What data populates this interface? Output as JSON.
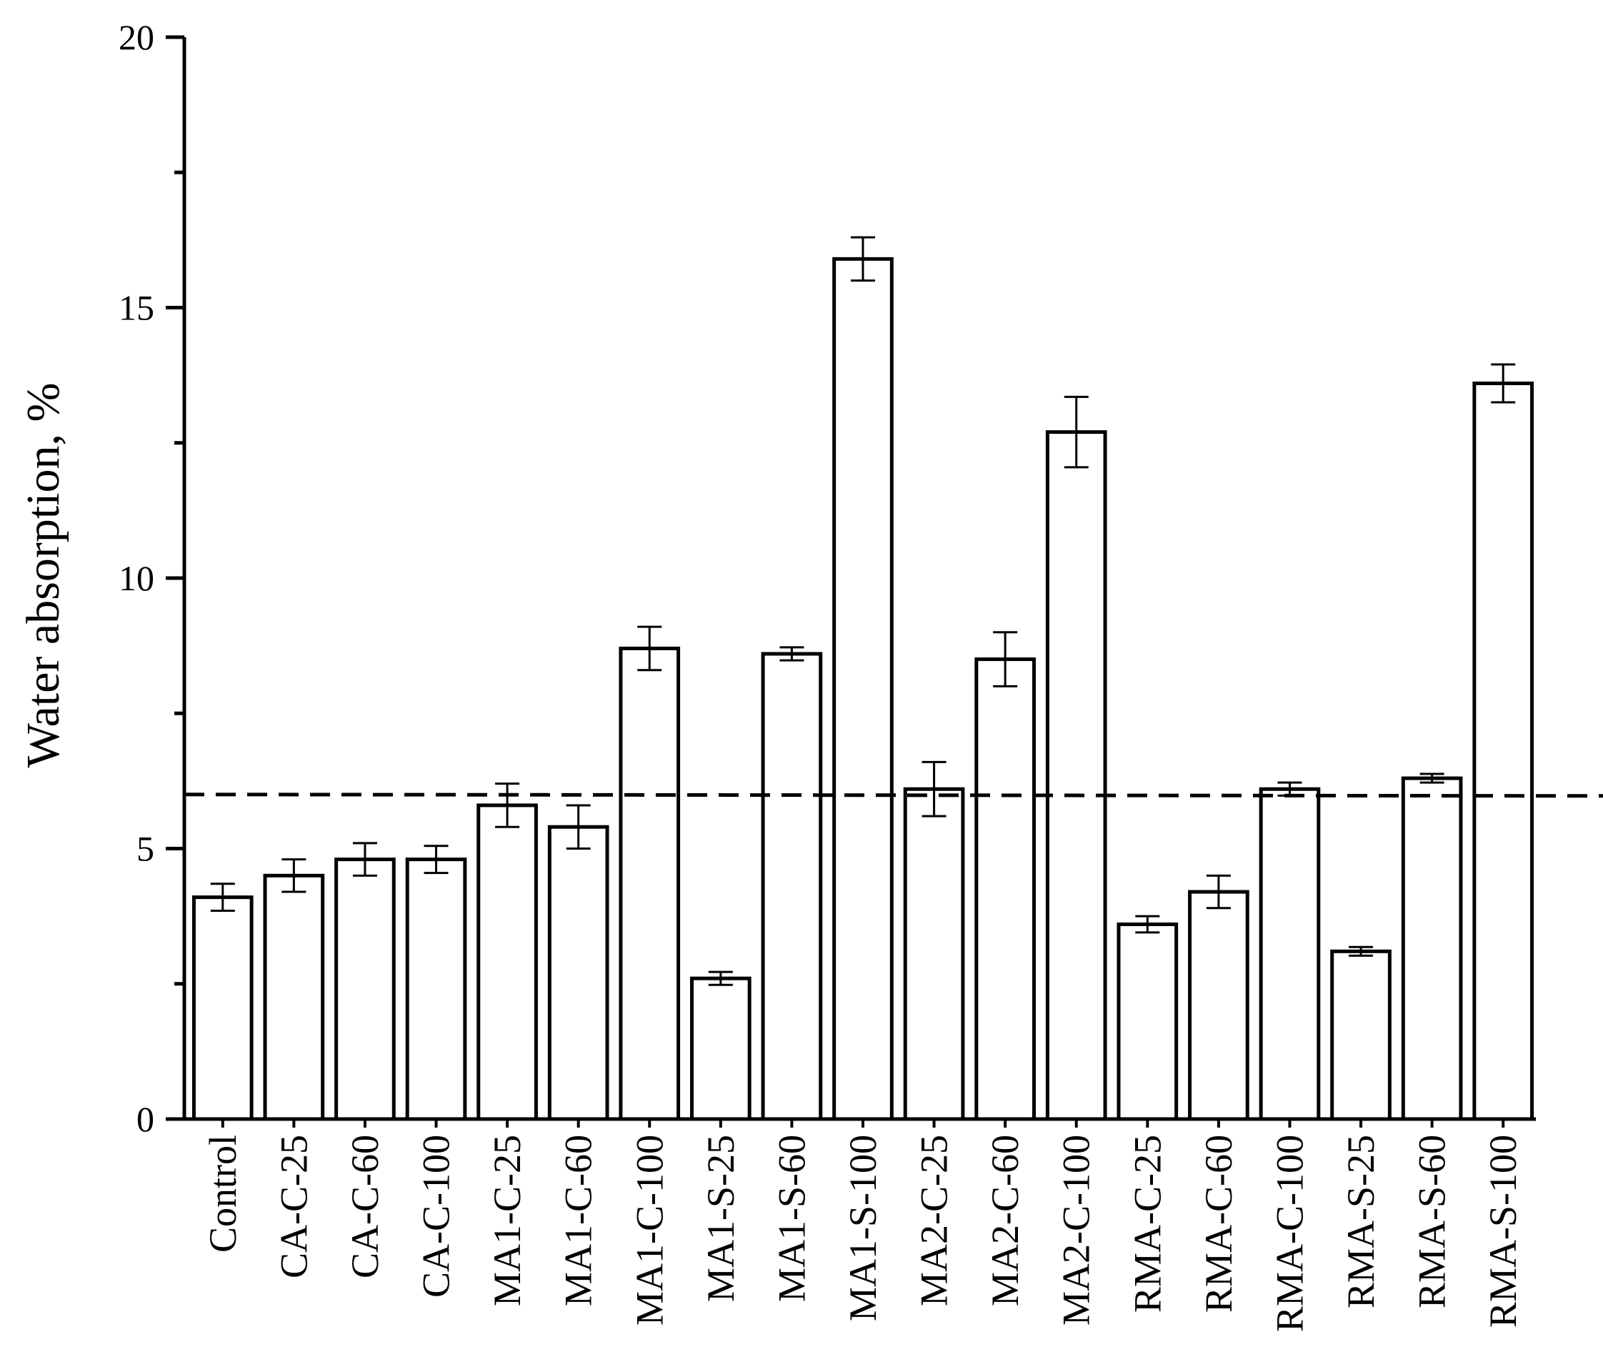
{
  "chart_data": {
    "type": "bar",
    "title": "",
    "xlabel": "",
    "ylabel": "Water absorption, %",
    "ylim": [
      0,
      20
    ],
    "yticks": [
      0,
      5,
      10,
      15,
      20
    ],
    "y_minor_ticks": [
      2.5,
      7.5,
      12.5,
      17.5
    ],
    "grid": false,
    "legend": "none",
    "bar_fill": "#ffffff",
    "bar_stroke": "#000000",
    "categories": [
      "Control",
      "CA-C-25",
      "CA-C-60",
      "CA-C-100",
      "MA1-C-25",
      "MA1-C-60",
      "MA1-C-100",
      "MA1-S-25",
      "MA1-S-60",
      "MA1-S-100",
      "MA2-C-25",
      "MA2-C-60",
      "MA2-C-100",
      "RMA-C-25",
      "RMA-C-60",
      "RMA-C-100",
      "RMA-S-25",
      "RMA-S-60",
      "RMA-S-100"
    ],
    "values": [
      4.1,
      4.5,
      4.8,
      4.8,
      5.8,
      5.4,
      8.7,
      2.6,
      8.6,
      15.9,
      6.1,
      8.5,
      12.7,
      3.6,
      4.2,
      6.1,
      3.1,
      6.3,
      13.6
    ],
    "errors": [
      0.25,
      0.3,
      0.3,
      0.25,
      0.4,
      0.4,
      0.4,
      0.12,
      0.12,
      0.4,
      0.5,
      0.5,
      0.65,
      0.15,
      0.3,
      0.12,
      0.08,
      0.08,
      0.35
    ],
    "reference_line": {
      "y": 6,
      "style": "dashed"
    }
  }
}
